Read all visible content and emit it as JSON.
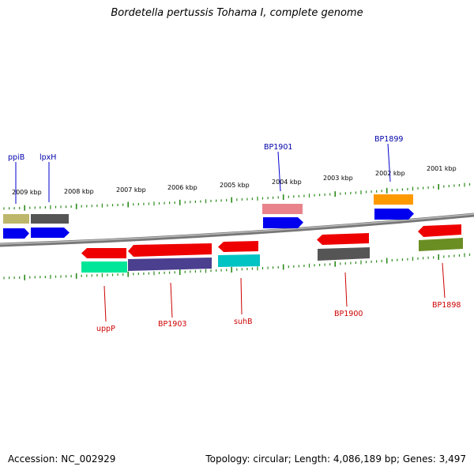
{
  "title": "Bordetella pertussis Tohama I, complete genome",
  "footer": {
    "accession": "Accession: NC_002929",
    "summary": "Topology: circular; Length: 4,086,189 bp; Genes: 3,497"
  },
  "ticks": [
    {
      "label": "2009 kbp"
    },
    {
      "label": "2008 kbp"
    },
    {
      "label": "2007 kbp"
    },
    {
      "label": "2006 kbp"
    },
    {
      "label": "2005 kbp"
    },
    {
      "label": "2004 kbp"
    },
    {
      "label": "2003 kbp"
    },
    {
      "label": "2002 kbp"
    },
    {
      "label": "2001 kbp"
    }
  ],
  "genes": [
    {
      "name": "ppiB",
      "color": "#0000aa"
    },
    {
      "name": "lpxH",
      "color": "#0000aa"
    },
    {
      "name": "BP1901",
      "color": "#0000aa"
    },
    {
      "name": "BP1899",
      "color": "#0000aa"
    },
    {
      "name": "uppP",
      "color": "#cc0000"
    },
    {
      "name": "BP1903",
      "color": "#cc0000"
    },
    {
      "name": "suhB",
      "color": "#cc0000"
    },
    {
      "name": "BP1900",
      "color": "#cc0000"
    },
    {
      "name": "BP1898",
      "color": "#cc0000"
    }
  ],
  "colors": {
    "forward_label": "#0000aa",
    "reverse_label": "#cc0000",
    "tick": "#2a8a1a",
    "backbone": "#888888"
  }
}
